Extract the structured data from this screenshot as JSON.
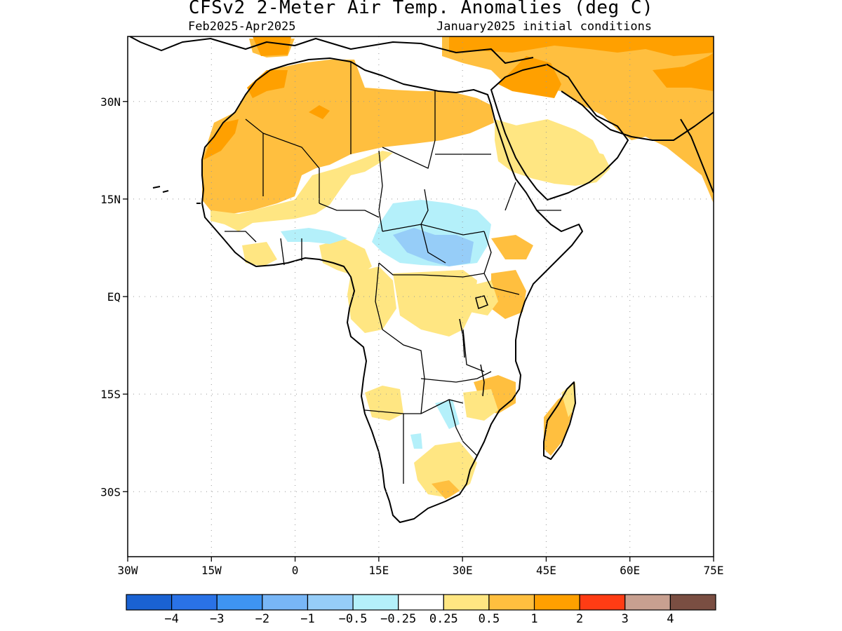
{
  "title": "CFSv2 2-Meter Air Temp. Anomalies (deg C)",
  "subtitle_left": "Feb2025-Apr2025",
  "subtitle_right": "January2025 initial conditions",
  "map": {
    "lon_range": [
      -30,
      75
    ],
    "lat_range": [
      -40,
      40
    ],
    "x_ticks": [
      "30W",
      "15W",
      "0",
      "15E",
      "30E",
      "45E",
      "60E",
      "75E"
    ],
    "y_ticks": [
      "30N",
      "15N",
      "EQ",
      "15S",
      "30S"
    ],
    "grid": "dotted"
  },
  "colorbar": {
    "colors": [
      "#1a62d2",
      "#2a72e6",
      "#3e94f2",
      "#78b6f6",
      "#96cdf8",
      "#b4f0fa",
      "#ffffff",
      "#ffe682",
      "#ffbf3f",
      "#ffa000",
      "#ff3c14",
      "#c8a090",
      "#7a4e42"
    ],
    "labels": [
      "-4",
      "-3",
      "-2",
      "-1",
      "-0.5",
      "-0.25",
      "0.25",
      "0.5",
      "1",
      "2",
      "3",
      "4"
    ]
  }
}
